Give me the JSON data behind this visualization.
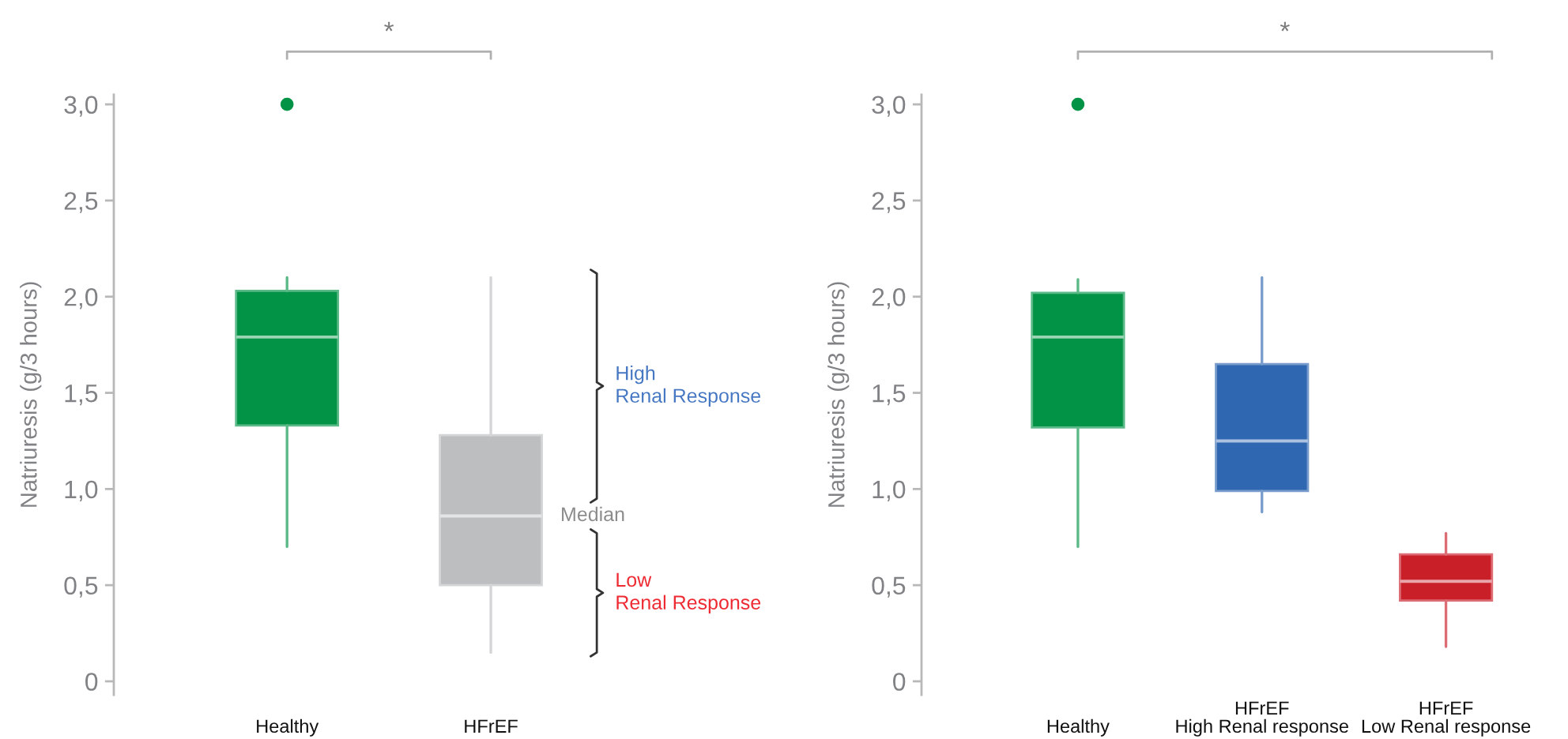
{
  "chart_data": [
    {
      "type": "box",
      "ylabel": "Natriuresis (g/3 hours)",
      "categories": [
        "Healthy",
        "HFrEF"
      ],
      "boxes": [
        {
          "low": 0.7,
          "q1": 1.33,
          "median": 1.79,
          "q3": 2.03,
          "high": 2.1,
          "outliers": [
            3.0
          ]
        },
        {
          "low": 0.15,
          "q1": 0.5,
          "median": 0.86,
          "q3": 1.28,
          "high": 2.1
        }
      ],
      "colors": [
        "#039346",
        "#bcbec0"
      ],
      "ylim": [
        -0.07,
        3.05
      ],
      "yticks": [
        0,
        {
          "value": 0.5,
          "label": "0,5"
        },
        {
          "value": 1.0,
          "label": "1,0"
        },
        {
          "value": 1.5,
          "label": "1,5"
        },
        {
          "value": 2.0,
          "label": "2,0"
        },
        {
          "value": 2.5,
          "label": "2,5"
        },
        {
          "value": 3.0,
          "label": "3,0"
        }
      ],
      "annotations": [
        "*",
        "High\nRenal Response",
        "Median",
        "Low\nRenal Response"
      ]
    },
    {
      "type": "box",
      "ylabel": "Natriuresis (g/3 hours)",
      "categories": [
        "Healthy",
        "HFrEF\nHigh Renal response",
        "HFrEF\nLow Renal response"
      ],
      "boxes": [
        {
          "low": 0.7,
          "q1": 1.32,
          "median": 1.79,
          "q3": 2.02,
          "high": 2.09,
          "outliers": [
            3.0
          ]
        },
        {
          "low": 0.88,
          "q1": 0.99,
          "median": 1.25,
          "q3": 1.65,
          "high": 2.1
        },
        {
          "low": 0.18,
          "q1": 0.42,
          "median": 0.52,
          "q3": 0.66,
          "high": 0.77
        }
      ],
      "colors": [
        "#039346",
        "#2f67b1",
        "#c91f29"
      ],
      "ylim": [
        -0.07,
        3.05
      ],
      "yticks": [
        0,
        {
          "value": 0.5,
          "label": "0,5"
        },
        {
          "value": 1.0,
          "label": "1,0"
        },
        {
          "value": 1.5,
          "label": "1,5"
        },
        {
          "value": 2.0,
          "label": "2,0"
        },
        {
          "value": 2.5,
          "label": "2,5"
        },
        {
          "value": 3.0,
          "label": "3,0"
        }
      ],
      "annotations": [
        "*"
      ]
    }
  ]
}
